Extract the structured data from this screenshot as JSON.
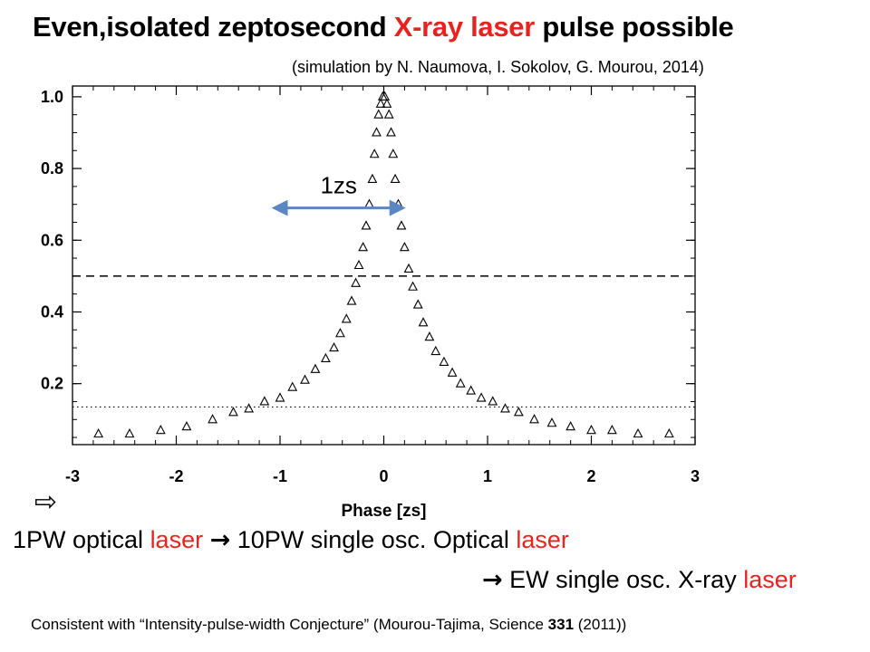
{
  "header": {
    "title_pre": "Even,isolated zeptosecond ",
    "title_highlight": "X-ray laser",
    "title_post": " pulse possible",
    "subtitle": "(simulation by N. Naumova, I. Sokolov, G. Mourou, 2014)"
  },
  "colors": {
    "highlight": "#e8231f",
    "annotation_arrow": "#5b86c4",
    "axis": "#000000"
  },
  "chart_data": {
    "type": "scatter",
    "marker": "triangle-open",
    "xlabel": "Phase [zs]",
    "ylabel": "",
    "xlim": [
      -3,
      3
    ],
    "ylim": [
      0.03,
      1.03
    ],
    "x_ticks": [
      -3,
      -2,
      -1,
      0,
      1,
      2,
      3
    ],
    "y_ticks": [
      0.2,
      0.4,
      0.6,
      0.8,
      1.0
    ],
    "x_tick_labels": [
      "-3",
      "-2",
      "-1",
      "0",
      "1",
      "2",
      "3"
    ],
    "y_tick_labels": [
      "0.2",
      "0.4",
      "0.6",
      "0.8",
      "1.0"
    ],
    "reference_lines": [
      {
        "style": "dashed",
        "y": 0.5
      },
      {
        "style": "dotted",
        "y": 0.135
      }
    ],
    "annotation": {
      "label": "1zs",
      "x_start": -1.05,
      "x_end": 0.18,
      "y": 0.69
    },
    "series": [
      {
        "x": [
          -2.75,
          -2.45,
          -2.15,
          -1.9,
          -1.65,
          -1.45,
          -1.3,
          -1.15,
          -1.0,
          -0.88,
          -0.76,
          -0.66,
          -0.56,
          -0.48,
          -0.42,
          -0.36,
          -0.31,
          -0.27,
          -0.24,
          -0.2,
          -0.17,
          -0.14,
          -0.11,
          -0.09,
          -0.07,
          -0.05,
          -0.03,
          -0.01,
          0.01,
          0.03,
          0.05,
          0.07,
          0.09,
          0.11,
          0.14,
          0.17,
          0.2,
          0.24,
          0.28,
          0.33,
          0.38,
          0.44,
          0.5,
          0.58,
          0.66,
          0.74,
          0.84,
          0.94,
          1.05,
          1.17,
          1.3,
          1.45,
          1.62,
          1.8,
          2.0,
          2.2,
          2.45,
          2.75
        ],
        "y": [
          0.06,
          0.06,
          0.07,
          0.08,
          0.1,
          0.12,
          0.13,
          0.15,
          0.16,
          0.19,
          0.21,
          0.24,
          0.27,
          0.3,
          0.34,
          0.38,
          0.43,
          0.48,
          0.53,
          0.58,
          0.64,
          0.7,
          0.77,
          0.84,
          0.9,
          0.95,
          0.98,
          1.0,
          1.0,
          0.98,
          0.95,
          0.9,
          0.84,
          0.77,
          0.7,
          0.64,
          0.58,
          0.52,
          0.47,
          0.42,
          0.37,
          0.33,
          0.29,
          0.26,
          0.23,
          0.2,
          0.18,
          0.16,
          0.15,
          0.13,
          0.12,
          0.1,
          0.09,
          0.08,
          0.07,
          0.07,
          0.06,
          0.06
        ]
      }
    ]
  },
  "body_text": {
    "line1_a": "1PW optical ",
    "line1_laser": "laser",
    "line1_arrow": "→",
    "line1_b": " 10PW single osc. Optical ",
    "line1_laser2": "laser",
    "line2_arrow": "→",
    "line2_a": " EW single osc. X-ray ",
    "line2_laser": "laser",
    "hollow_arrow": "⇨",
    "footnote_pre": "Consistent with “Intensity-pulse-width Conjecture” (Mourou-Tajima, Science ",
    "footnote_bold": "331",
    "footnote_post": " (2011))"
  }
}
